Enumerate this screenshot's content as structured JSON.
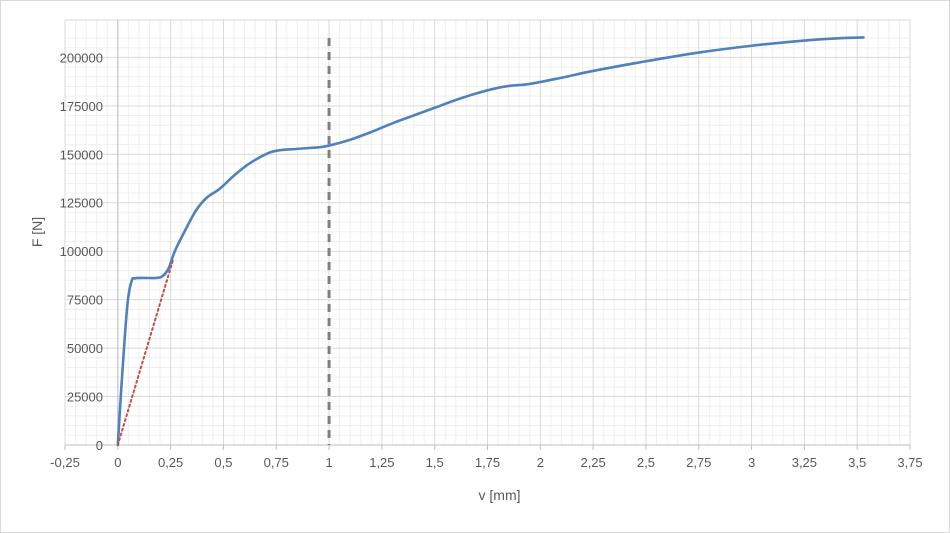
{
  "chart_data": {
    "type": "line",
    "xlabel": "v [mm]",
    "ylabel": "F [N]",
    "xlim": [
      -0.25,
      3.75
    ],
    "ylim": [
      0,
      210000
    ],
    "x_ticks": [
      {
        "value": -0.25,
        "label": "-0,25"
      },
      {
        "value": 0,
        "label": "0"
      },
      {
        "value": 0.25,
        "label": "0,25"
      },
      {
        "value": 0.5,
        "label": "0,5"
      },
      {
        "value": 0.75,
        "label": "0,75"
      },
      {
        "value": 1,
        "label": "1"
      },
      {
        "value": 1.25,
        "label": "1,25"
      },
      {
        "value": 1.5,
        "label": "1,5"
      },
      {
        "value": 1.75,
        "label": "1,75"
      },
      {
        "value": 2,
        "label": "2"
      },
      {
        "value": 2.25,
        "label": "2,25"
      },
      {
        "value": 2.5,
        "label": "2,5"
      },
      {
        "value": 2.75,
        "label": "2,75"
      },
      {
        "value": 3,
        "label": "3"
      },
      {
        "value": 3.25,
        "label": "3,25"
      },
      {
        "value": 3.5,
        "label": "3,5"
      },
      {
        "value": 3.75,
        "label": "3,75"
      }
    ],
    "y_ticks": [
      {
        "value": 0,
        "label": "0"
      },
      {
        "value": 25000,
        "label": "25000"
      },
      {
        "value": 50000,
        "label": "50000"
      },
      {
        "value": 75000,
        "label": "75000"
      },
      {
        "value": 100000,
        "label": "100000"
      },
      {
        "value": 125000,
        "label": "125000"
      },
      {
        "value": 150000,
        "label": "150000"
      },
      {
        "value": 175000,
        "label": "175000"
      },
      {
        "value": 200000,
        "label": "200000"
      }
    ],
    "grid": "major and minor",
    "legend": "none",
    "series": [
      {
        "style": "solid",
        "color": "#4f81bd",
        "points": [
          [
            0,
            0
          ],
          [
            0.02,
            35000
          ],
          [
            0.045,
            72000
          ],
          [
            0.065,
            84500
          ],
          [
            0.08,
            86000
          ],
          [
            0.12,
            86200
          ],
          [
            0.18,
            86200
          ],
          [
            0.21,
            87000
          ],
          [
            0.24,
            91000
          ],
          [
            0.27,
            100000
          ],
          [
            0.32,
            111000
          ],
          [
            0.37,
            121000
          ],
          [
            0.42,
            127500
          ],
          [
            0.48,
            132000
          ],
          [
            0.55,
            139000
          ],
          [
            0.62,
            145000
          ],
          [
            0.7,
            150000
          ],
          [
            0.76,
            152000
          ],
          [
            0.85,
            152800
          ],
          [
            0.95,
            153600
          ],
          [
            1.0,
            154500
          ],
          [
            1.1,
            157500
          ],
          [
            1.2,
            161500
          ],
          [
            1.3,
            166000
          ],
          [
            1.4,
            170000
          ],
          [
            1.5,
            174000
          ],
          [
            1.6,
            178000
          ],
          [
            1.7,
            181500
          ],
          [
            1.8,
            184300
          ],
          [
            1.87,
            185500
          ],
          [
            1.95,
            186300
          ],
          [
            2.1,
            189500
          ],
          [
            2.25,
            193000
          ],
          [
            2.5,
            198000
          ],
          [
            2.75,
            202500
          ],
          [
            3.0,
            206000
          ],
          [
            3.25,
            208700
          ],
          [
            3.4,
            209800
          ],
          [
            3.53,
            210300
          ]
        ]
      },
      {
        "style": "dotted",
        "color": "#c0504d",
        "points": [
          [
            0,
            0
          ],
          [
            0.26,
            95000
          ]
        ]
      }
    ],
    "reference_line": {
      "x": 1,
      "style": "dashed",
      "color": "#7f7f7f"
    }
  }
}
